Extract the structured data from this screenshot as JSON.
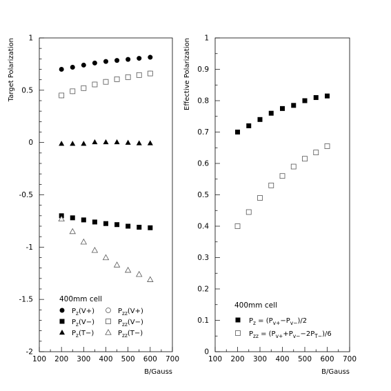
{
  "chart_data": [
    {
      "type": "scatter",
      "xlabel": "B/Gauss",
      "ylabel": "Target Polarization",
      "xlim": [
        100,
        700
      ],
      "ylim": [
        -2,
        1
      ],
      "xticks": [
        "100",
        "200",
        "300",
        "400",
        "500",
        "600",
        "700"
      ],
      "yticks": [
        "1",
        "0.5",
        "0",
        "-0.5",
        "-1",
        "-1.5",
        "-2"
      ],
      "legend_title": "400mm cell",
      "legend_position": "bottom-left",
      "grid": false,
      "series": [
        {
          "name": "Pz(V+)",
          "marker": "filled-circle",
          "x": [
            200,
            250,
            300,
            350,
            400,
            450,
            500,
            550,
            600
          ],
          "values": [
            0.7,
            0.72,
            0.74,
            0.76,
            0.775,
            0.785,
            0.795,
            0.805,
            0.815
          ]
        },
        {
          "name": "Pzz(V+)",
          "marker": "open-circle",
          "x": [
            200,
            250,
            300,
            350,
            400,
            450,
            500,
            550,
            600
          ],
          "values": [
            0.45,
            0.49,
            0.52,
            0.555,
            0.58,
            0.605,
            0.625,
            0.645,
            0.66
          ]
        },
        {
          "name": "Pz(V−)",
          "marker": "filled-square",
          "x": [
            200,
            250,
            300,
            350,
            400,
            450,
            500,
            550,
            600
          ],
          "values": [
            -0.7,
            -0.72,
            -0.74,
            -0.76,
            -0.775,
            -0.785,
            -0.8,
            -0.81,
            -0.815
          ]
        },
        {
          "name": "Pzz(V−)",
          "marker": "open-square",
          "x": [
            200,
            250,
            300,
            350,
            400,
            450,
            500,
            550,
            600
          ],
          "values": [
            0.45,
            0.49,
            0.52,
            0.555,
            0.58,
            0.605,
            0.625,
            0.645,
            0.66
          ]
        },
        {
          "name": "Pz(T−)",
          "marker": "filled-triangle",
          "x": [
            200,
            250,
            300,
            350,
            400,
            450,
            500,
            550,
            600
          ],
          "values": [
            -0.01,
            -0.01,
            -0.01,
            0.005,
            0.005,
            0.005,
            0.0,
            -0.005,
            -0.005
          ]
        },
        {
          "name": "Pzz(T−)",
          "marker": "open-triangle",
          "x": [
            200,
            250,
            300,
            350,
            400,
            450,
            500,
            550,
            600
          ],
          "values": [
            -0.73,
            -0.85,
            -0.95,
            -1.03,
            -1.1,
            -1.17,
            -1.22,
            -1.26,
            -1.31
          ]
        }
      ],
      "legend": [
        {
          "prefix": "P",
          "sub": "z",
          "suffix": "(V+)",
          "marker": "filled-circle"
        },
        {
          "prefix": "P",
          "sub": "zz",
          "suffix": "(V+)",
          "marker": "open-circle"
        },
        {
          "prefix": "P",
          "sub": "z",
          "suffix": "(V−)",
          "marker": "filled-square"
        },
        {
          "prefix": "P",
          "sub": "zz",
          "suffix": "(V−)",
          "marker": "open-square"
        },
        {
          "prefix": "P",
          "sub": "z",
          "suffix": "(T−)",
          "marker": "filled-triangle"
        },
        {
          "prefix": "P",
          "sub": "zz",
          "suffix": "(T−)",
          "marker": "open-triangle"
        }
      ]
    },
    {
      "type": "scatter",
      "xlabel": "B/Gauss",
      "ylabel": "Effective Polarization",
      "xlim": [
        100,
        700
      ],
      "ylim": [
        0,
        1
      ],
      "xticks": [
        "100",
        "200",
        "300",
        "400",
        "500",
        "600",
        "700"
      ],
      "yticks": [
        "1",
        "0.9",
        "0.8",
        "0.7",
        "0.6",
        "0.5",
        "0.4",
        "0.3",
        "0.2",
        "0.1",
        "0"
      ],
      "legend_title": "400mm cell",
      "legend_position": "bottom-left",
      "grid": false,
      "series": [
        {
          "name": "Pz = (Pv+−Pv−)/2",
          "marker": "filled-square",
          "x": [
            200,
            250,
            300,
            350,
            400,
            450,
            500,
            550,
            600
          ],
          "values": [
            0.7,
            0.72,
            0.74,
            0.76,
            0.775,
            0.785,
            0.8,
            0.81,
            0.815
          ]
        },
        {
          "name": "Pzz = (Pv++Pv−−2PT−)/6",
          "marker": "open-square",
          "x": [
            200,
            250,
            300,
            350,
            400,
            450,
            500,
            550,
            600
          ],
          "values": [
            0.4,
            0.445,
            0.49,
            0.53,
            0.56,
            0.59,
            0.615,
            0.635,
            0.655
          ]
        }
      ],
      "legend": [
        {
          "marker": "filled-square",
          "parts": [
            [
              "P",
              ""
            ],
            [
              "z",
              "sub"
            ],
            [
              " = (P",
              ""
            ],
            [
              "v+",
              "sub"
            ],
            [
              "−P",
              ""
            ],
            [
              "v−",
              "sub"
            ],
            [
              ")/2",
              ""
            ]
          ]
        },
        {
          "marker": "open-square",
          "parts": [
            [
              "P",
              ""
            ],
            [
              "zz",
              "sub"
            ],
            [
              " = (P",
              ""
            ],
            [
              "v+",
              "sub"
            ],
            [
              "+P",
              ""
            ],
            [
              "v−",
              "sub"
            ],
            [
              "−2P",
              ""
            ],
            [
              "T−",
              "sub"
            ],
            [
              ")/6",
              ""
            ]
          ]
        }
      ]
    }
  ]
}
